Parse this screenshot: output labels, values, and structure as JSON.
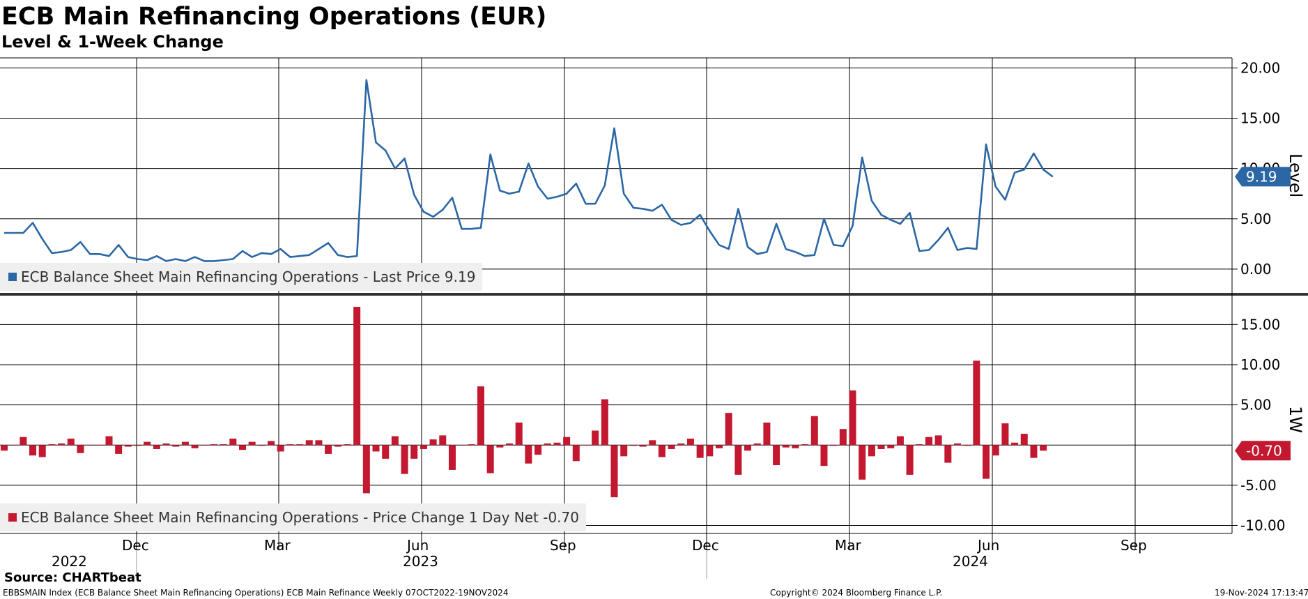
{
  "header": {
    "title": "ECB Main Refinancing Operations (EUR)",
    "subtitle": "Level & 1-Week Change"
  },
  "colors": {
    "line": "#2B67A4",
    "bar": "#C3182F",
    "grid": "#000000",
    "legend_bg": "#efefef"
  },
  "chart_data": [
    {
      "type": "line",
      "panel": "top",
      "ylabel": "Level",
      "ylim": [
        -2.5,
        21
      ],
      "yticks": [
        "20.00",
        "15.00",
        "10.00",
        "5.00",
        "0.00"
      ],
      "ytick_values": [
        20,
        15,
        10,
        5,
        0
      ],
      "last_value_label": "9.19",
      "series": [
        {
          "name": "ECB Balance Sheet Main Refinancing Operations - Last Price 9.19",
          "values": [
            3.6,
            3.6,
            3.6,
            4.6,
            3.0,
            1.6,
            1.7,
            1.9,
            2.7,
            1.5,
            1.5,
            1.3,
            2.4,
            1.2,
            1.0,
            0.9,
            1.3,
            0.8,
            1.0,
            0.8,
            1.2,
            0.8,
            0.8,
            0.9,
            1.0,
            1.8,
            1.2,
            1.6,
            1.5,
            2.0,
            1.2,
            1.3,
            1.4,
            2.0,
            2.6,
            1.4,
            1.2,
            1.3,
            18.8,
            12.6,
            11.8,
            10.0,
            11.0,
            7.4,
            5.7,
            5.2,
            5.9,
            7.1,
            4.0,
            4.0,
            4.1,
            11.4,
            7.8,
            7.5,
            7.7,
            10.5,
            8.2,
            7.0,
            7.2,
            7.5,
            8.5,
            6.5,
            6.5,
            8.3,
            14.0,
            7.5,
            6.1,
            6.0,
            5.8,
            6.4,
            4.9,
            4.4,
            4.6,
            5.4,
            3.8,
            2.4,
            2.0,
            6.0,
            2.2,
            1.5,
            1.7,
            4.5,
            2.0,
            1.7,
            1.3,
            1.4,
            5.0,
            2.4,
            2.3,
            4.3,
            11.1,
            6.8,
            5.4,
            4.9,
            4.5,
            5.6,
            1.8,
            1.9,
            2.9,
            4.1,
            1.9,
            2.1,
            2.0,
            12.4,
            8.2,
            6.9,
            9.6,
            9.9,
            11.5,
            9.9,
            9.19
          ]
        }
      ]
    },
    {
      "type": "bar",
      "panel": "bottom",
      "ylabel": "1W",
      "ylim": [
        -11,
        18.5
      ],
      "yticks": [
        "15.00",
        "10.00",
        "5.00",
        "-5.00",
        "-10.00"
      ],
      "ytick_values": [
        15,
        10,
        5,
        -5,
        -10
      ],
      "last_value_label": "-0.70",
      "series": [
        {
          "name": "ECB Balance Sheet Main Refinancing Operations - Price Change 1 Day Net -0.70",
          "values": [
            -0.7,
            0.0,
            1.0,
            -1.3,
            -1.5,
            0.1,
            0.2,
            0.8,
            -1.0,
            0.0,
            0.0,
            1.1,
            -1.1,
            -0.2,
            -0.1,
            0.4,
            -0.5,
            0.2,
            -0.2,
            0.4,
            -0.4,
            0.0,
            0.1,
            0.1,
            0.8,
            -0.6,
            0.4,
            -0.1,
            0.5,
            -0.8,
            0.1,
            0.1,
            0.6,
            0.6,
            -1.1,
            -0.2,
            0.1,
            17.2,
            -6.0,
            -0.8,
            -1.7,
            1.1,
            -3.6,
            -1.7,
            -0.5,
            0.7,
            1.2,
            -3.1,
            0.0,
            0.1,
            7.3,
            -3.5,
            -0.3,
            0.2,
            2.8,
            -2.3,
            -1.2,
            0.2,
            0.3,
            1.0,
            -2.0,
            0.0,
            1.8,
            5.7,
            -6.5,
            -1.4,
            -0.1,
            -0.2,
            0.6,
            -1.5,
            -0.5,
            0.2,
            0.8,
            -1.6,
            -1.4,
            -0.4,
            4.0,
            -3.7,
            -0.7,
            0.2,
            2.8,
            -2.5,
            -0.3,
            -0.4,
            0.1,
            3.6,
            -2.6,
            -0.1,
            2.0,
            6.8,
            -4.3,
            -1.4,
            -0.5,
            -0.4,
            1.1,
            -3.7,
            0.1,
            1.0,
            1.2,
            -2.2,
            0.2,
            -0.1,
            10.5,
            -4.2,
            -1.3,
            2.7,
            0.3,
            1.4,
            -1.6,
            -0.7
          ]
        }
      ]
    }
  ],
  "x_axis": {
    "month_labels": [
      {
        "label": "Dec",
        "index": 9
      },
      {
        "label": "Mar",
        "index": 22
      },
      {
        "label": "Jun",
        "index": 35
      },
      {
        "label": "Sep",
        "index": 48
      },
      {
        "label": "Dec",
        "index": 61
      },
      {
        "label": "Mar",
        "index": 74
      },
      {
        "label": "Jun",
        "index": 87
      },
      {
        "label": "Sep",
        "index": 100
      }
    ],
    "year_labels": [
      "2022",
      "2023",
      "2024"
    ]
  },
  "footer": {
    "source": "Source: CHARTbeat",
    "description": "EBBSMAIN Index (ECB Balance Sheet Main Refinancing Operations) ECB Main Refinance  Weekly 07OCT2022-19NOV2024",
    "copyright": "Copyright© 2024 Bloomberg Finance L.P.",
    "timestamp": "19-Nov-2024 17:13:47"
  }
}
